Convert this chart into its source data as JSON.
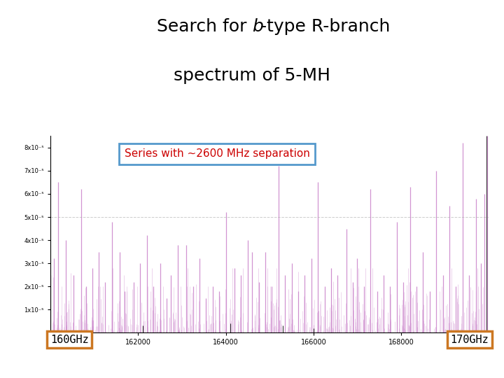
{
  "annotation_text": "Series with ＾2600 MHz separation",
  "annotation_color": "#cc0000",
  "annotation_box_color": "#5599cc",
  "xlabel_left": "160GHz",
  "xlabel_right": "170GHz",
  "xlabel_box_color": "#cc7722",
  "xmin": 160000,
  "xmax": 170000,
  "ymin": 0,
  "ymax": 8.5e-05,
  "bg_color": "#ffffff",
  "bar_color": "#cc88cc",
  "separation_mhz": 2600
}
